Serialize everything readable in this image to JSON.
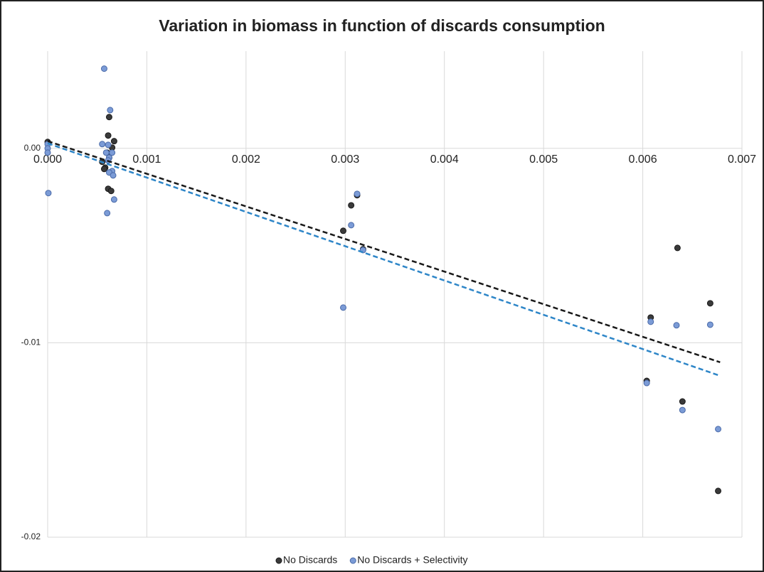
{
  "chart_data": {
    "type": "scatter",
    "title": "Variation in biomass in function of discards consumption",
    "xlim": [
      0,
      0.007
    ],
    "xticks": [
      {
        "value": 0,
        "label": "0.000"
      },
      0.001,
      0.002,
      0.003,
      0.004,
      0.005,
      0.006,
      0.007
    ],
    "ylim": [
      -0.02,
      0.005
    ],
    "yticks": [
      -0.02,
      -0.01,
      {
        "value": 0,
        "label": "0.00"
      }
    ],
    "grid": true,
    "legend": "bottom",
    "series": [
      {
        "name": "No Discards",
        "color": "#3a3a3a",
        "edge": "#1a1a1a",
        "trend_color": "#1a1a1a",
        "x": [
          0,
          7e-06,
          0.00061,
          0.00062,
          0.00067,
          0.00065,
          0.0006,
          0.00062,
          0.00055,
          0.00058,
          0.00057,
          0.00061,
          0.00064,
          0.00306,
          0.00312,
          0.00298,
          0.00318,
          0.00608,
          0.00604,
          0.00635,
          0.0064,
          0.00668,
          0.00676
        ],
        "y": [
          0.00033,
          0.00026,
          0.00066,
          0.00161,
          0.00037,
          4e-05,
          -0.00022,
          -0.00048,
          -0.00069,
          -0.00099,
          -0.00106,
          -0.00208,
          -0.00219,
          -0.00293,
          -0.00241,
          -0.00424,
          -0.00519,
          -0.0087,
          -0.01196,
          -0.00512,
          -0.01302,
          -0.00797,
          -0.01762
        ],
        "trendline": {
          "x": [
            0,
            0.00678
          ],
          "y": [
            0.00037,
            -0.011
          ]
        }
      },
      {
        "name": "No Discards + Selectivity",
        "color": "#7b9bd6",
        "edge": "#4a6aa8",
        "trend_color": "#2e86c8",
        "x": [
          0.00057,
          0.00063,
          0,
          0,
          0,
          7e-06,
          0.00055,
          0.00061,
          0.00059,
          0.00065,
          0.00062,
          0.00061,
          0.00065,
          0.00062,
          0.00066,
          0.00067,
          0.0006,
          0.00312,
          0.00306,
          0.00318,
          0.00298,
          0.00608,
          0.00634,
          0.00668,
          0.00604,
          0.0064,
          0.00676
        ],
        "y": [
          0.0041,
          0.00197,
          0.00022,
          0,
          -0.00022,
          -0.0023,
          0.00022,
          0.00018,
          -0.00022,
          -0.00022,
          -0.00048,
          -0.00062,
          -0.00117,
          -0.00124,
          -0.00139,
          -0.00263,
          -0.00333,
          -0.00234,
          -0.00395,
          -0.00523,
          -0.00819,
          -0.00892,
          -0.0091,
          -0.00907,
          -0.01207,
          -0.01346,
          -0.01444
        ],
        "trendline": {
          "x": [
            0,
            0.00678
          ],
          "y": [
            0.00026,
            -0.0117
          ]
        }
      }
    ]
  }
}
